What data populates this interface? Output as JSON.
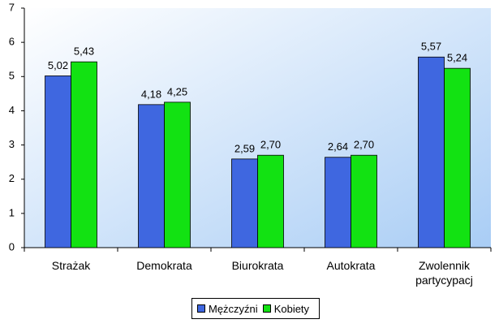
{
  "chart_data": {
    "type": "bar",
    "categories": [
      "Strażak",
      "Demokrata",
      "Biurokrata",
      "Autokrata",
      "Zwolennik partycypacj"
    ],
    "series": [
      {
        "name": "Mężczyźni",
        "color": "#3f67e0",
        "values": [
          5.02,
          4.18,
          2.59,
          2.64,
          5.57
        ],
        "value_labels": [
          "5,02",
          "4,18",
          "2,59",
          "2,64",
          "5,57"
        ]
      },
      {
        "name": "Kobiety",
        "color": "#12e212",
        "values": [
          5.43,
          4.25,
          2.7,
          2.7,
          5.24
        ],
        "value_labels": [
          "5,43",
          "4,25",
          "2,70",
          "2,70",
          "5,24"
        ]
      }
    ],
    "ylim": [
      0,
      7
    ],
    "yticks": [
      0,
      1,
      2,
      3,
      4,
      5,
      6,
      7
    ],
    "legend": "bottom"
  }
}
